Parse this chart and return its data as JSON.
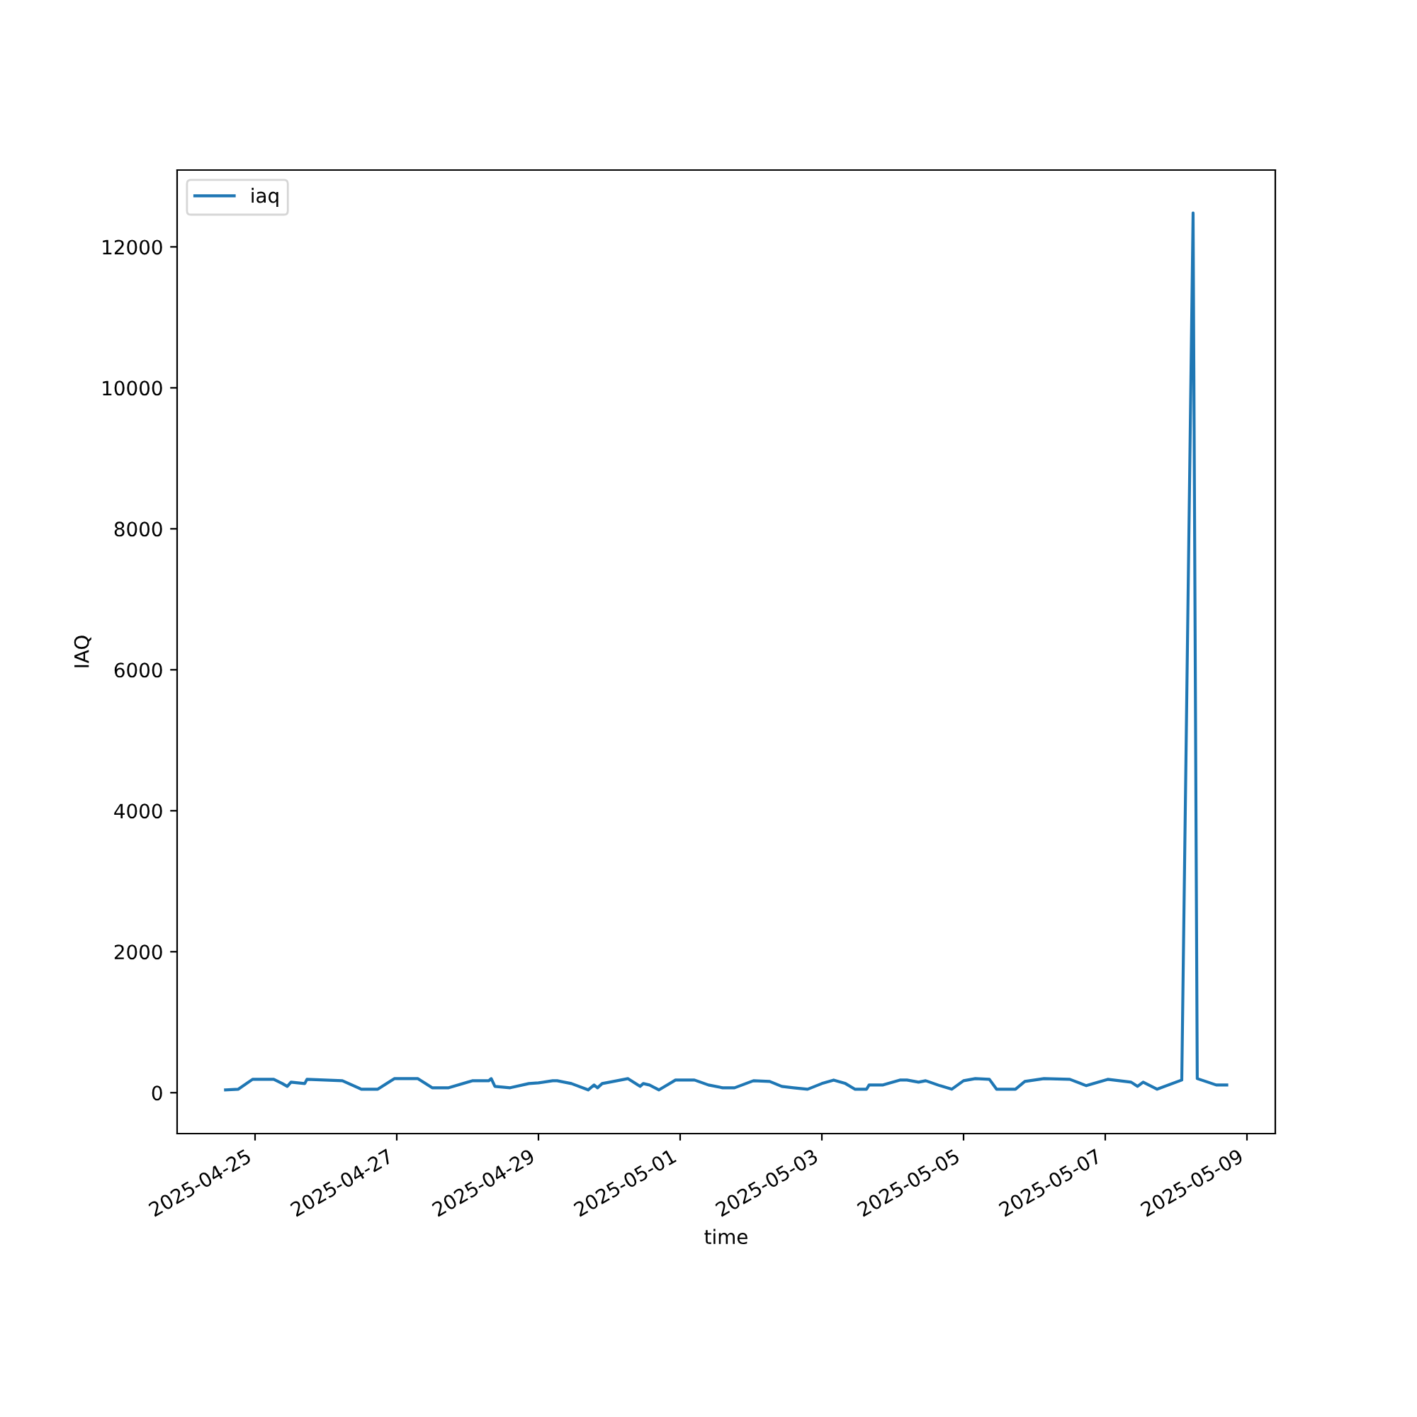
{
  "chart_data": {
    "type": "line",
    "xlabel": "time",
    "ylabel": "IAQ",
    "xlim": [
      "2025-04-23T21:36",
      "2025-05-09T09:36"
    ],
    "xticks": [
      "2025-04-25",
      "2025-04-27",
      "2025-04-29",
      "2025-05-01",
      "2025-05-03",
      "2025-05-05",
      "2025-05-07",
      "2025-05-09"
    ],
    "ylim": [
      -580,
      13090
    ],
    "yticks": [
      0,
      2000,
      4000,
      6000,
      8000,
      10000,
      12000
    ],
    "legend": "top left",
    "grid": false,
    "series": [
      {
        "name": "iaq",
        "color": "#1f77b4",
        "x": [
          "2025-04-24T14:00",
          "2025-04-24T18:20",
          "2025-04-24T23:10",
          "2025-04-25T06:20",
          "2025-04-25T09:15",
          "2025-04-25T10:55",
          "2025-04-25T12:10",
          "2025-04-25T16:50",
          "2025-04-25T17:35",
          "2025-04-26T05:35",
          "2025-04-26T12:00",
          "2025-04-26T17:35",
          "2025-04-26T23:10",
          "2025-04-27T07:10",
          "2025-04-27T12:00",
          "2025-04-27T17:35",
          "2025-04-28T01:35",
          "2025-04-28T07:10",
          "2025-04-28T08:00",
          "2025-04-28T09:15",
          "2025-04-28T14:25",
          "2025-04-28T20:45",
          "2025-04-29T00:00",
          "2025-04-29T04:50",
          "2025-04-29T06:20",
          "2025-04-29T11:10",
          "2025-04-29T16:50",
          "2025-04-29T18:50",
          "2025-04-29T20:00",
          "2025-04-29T21:35",
          "2025-04-30T06:20",
          "2025-04-30T10:25",
          "2025-04-30T11:30",
          "2025-04-30T13:35",
          "2025-04-30T16:50",
          "2025-04-30T22:25",
          "2025-05-01T04:50",
          "2025-05-01T09:35",
          "2025-05-01T14:25",
          "2025-05-01T18:25",
          "2025-05-02T00:50",
          "2025-05-02T06:20",
          "2025-05-02T10:25",
          "2025-05-02T14:25",
          "2025-05-02T19:10",
          "2025-05-03T00:00",
          "2025-05-03T04:00",
          "2025-05-03T08:00",
          "2025-05-03T11:10",
          "2025-05-03T15:10",
          "2025-05-03T16:00",
          "2025-05-03T20:45",
          "2025-05-04T02:25",
          "2025-05-04T04:50",
          "2025-05-04T08:45",
          "2025-05-04T11:10",
          "2025-05-04T16:00",
          "2025-05-04T20:00",
          "2025-05-05T00:00",
          "2025-05-05T04:00",
          "2025-05-05T08:45",
          "2025-05-05T11:10",
          "2025-05-05T17:35",
          "2025-05-05T20:45",
          "2025-05-06T03:15",
          "2025-05-06T12:00",
          "2025-05-06T17:35",
          "2025-05-07T00:50",
          "2025-05-07T08:45",
          "2025-05-07T10:55",
          "2025-05-07T12:50",
          "2025-05-07T17:35",
          "2025-05-08T01:55",
          "2025-05-08T05:45",
          "2025-05-08T07:10",
          "2025-05-08T13:35",
          "2025-05-08T17:10"
        ],
        "values": [
          40,
          50,
          190,
          190,
          130,
          90,
          150,
          130,
          190,
          170,
          50,
          50,
          200,
          200,
          70,
          70,
          170,
          170,
          200,
          90,
          70,
          130,
          140,
          170,
          170,
          130,
          40,
          110,
          70,
          130,
          200,
          90,
          130,
          110,
          40,
          180,
          180,
          110,
          70,
          70,
          170,
          160,
          90,
          70,
          50,
          130,
          180,
          130,
          50,
          50,
          110,
          110,
          180,
          180,
          150,
          170,
          100,
          50,
          170,
          200,
          190,
          50,
          50,
          160,
          200,
          190,
          100,
          190,
          150,
          90,
          150,
          50,
          180,
          12480,
          200,
          110,
          110
        ]
      }
    ]
  }
}
